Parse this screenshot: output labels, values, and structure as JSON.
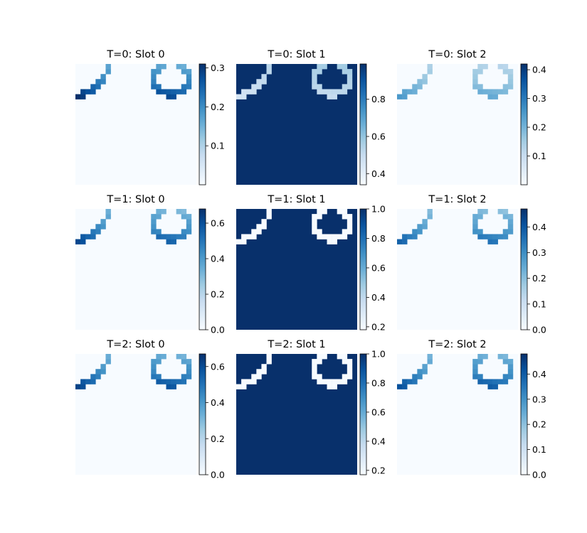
{
  "chart_data": {
    "type": "heatmap",
    "layout": "3x3 grid of attention-mask heatmaps with colorbars",
    "colormap": "Blues",
    "grid": false,
    "axes_visible": false,
    "panels": [
      {
        "title": "T=0: Slot 0",
        "colorbar_ticks": [
          "0.1",
          "0.2",
          "0.3"
        ],
        "colorbar_tick_values": [
          0.1,
          0.2,
          0.3
        ],
        "vmin": 0.0,
        "vmax": 0.31,
        "background": 0.0,
        "circle_values": [
          0.31,
          0.28
        ],
        "arc_fade": true,
        "ring_color": "dark"
      },
      {
        "title": "T=0: Slot 1",
        "colorbar_ticks": [
          "0.4",
          "0.6",
          "0.8"
        ],
        "colorbar_tick_values": [
          0.4,
          0.6,
          0.8
        ],
        "vmin": 0.34,
        "vmax": 0.99,
        "background": 0.99,
        "circle_values": [
          0.45,
          0.5
        ],
        "arc_fade": true,
        "ring_color": "light"
      },
      {
        "title": "T=0: Slot 2",
        "colorbar_ticks": [
          "0.1",
          "0.2",
          "0.3",
          "0.4"
        ],
        "colorbar_tick_values": [
          0.1,
          0.2,
          0.3,
          0.4
        ],
        "vmin": 0.0,
        "vmax": 0.42,
        "background": 0.0,
        "circle_values": [
          0.25,
          0.22
        ],
        "arc_fade": true,
        "ring_color": "mid"
      },
      {
        "title": "T=1: Slot 0",
        "colorbar_ticks": [
          "0.0",
          "0.2",
          "0.4",
          "0.6"
        ],
        "colorbar_tick_values": [
          0.0,
          0.2,
          0.4,
          0.6
        ],
        "vmin": 0.0,
        "vmax": 0.68,
        "background": 0.0,
        "circle_values": [
          0.62,
          0.55
        ],
        "arc_fade": true,
        "ring_color": "dark"
      },
      {
        "title": "T=1: Slot 1",
        "colorbar_ticks": [
          "0.2",
          "0.4",
          "0.6",
          "0.8",
          "1.0"
        ],
        "colorbar_tick_values": [
          0.2,
          0.4,
          0.6,
          0.8,
          1.0
        ],
        "vmin": 0.18,
        "vmax": 1.0,
        "background": 1.0,
        "circle_values": [
          0.18,
          0.18
        ],
        "arc_fade": false,
        "ring_color": "light"
      },
      {
        "title": "T=1: Slot 2",
        "colorbar_ticks": [
          "0.0",
          "0.1",
          "0.2",
          "0.3",
          "0.4"
        ],
        "colorbar_tick_values": [
          0.0,
          0.1,
          0.2,
          0.3,
          0.4
        ],
        "vmin": 0.0,
        "vmax": 0.47,
        "background": 0.0,
        "circle_values": [
          0.38,
          0.35
        ],
        "arc_fade": true,
        "ring_color": "mid"
      },
      {
        "title": "T=2: Slot 0",
        "colorbar_ticks": [
          "0.0",
          "0.2",
          "0.4",
          "0.6"
        ],
        "colorbar_tick_values": [
          0.0,
          0.2,
          0.4,
          0.6
        ],
        "vmin": 0.0,
        "vmax": 0.67,
        "background": 0.0,
        "circle_values": [
          0.62,
          0.58
        ],
        "arc_fade": true,
        "ring_color": "dark"
      },
      {
        "title": "T=2: Slot 1",
        "colorbar_ticks": [
          "0.2",
          "0.4",
          "0.6",
          "0.8",
          "1.0"
        ],
        "colorbar_tick_values": [
          0.2,
          0.4,
          0.6,
          0.8,
          1.0
        ],
        "vmin": 0.17,
        "vmax": 1.0,
        "background": 1.0,
        "circle_values": [
          0.17,
          0.17
        ],
        "arc_fade": false,
        "ring_color": "light"
      },
      {
        "title": "T=2: Slot 2",
        "colorbar_ticks": [
          "0.0",
          "0.1",
          "0.2",
          "0.3",
          "0.4"
        ],
        "colorbar_tick_values": [
          0.0,
          0.1,
          0.2,
          0.3,
          0.4
        ],
        "vmin": 0.0,
        "vmax": 0.48,
        "background": 0.0,
        "circle_values": [
          0.42,
          0.4
        ],
        "arc_fade": true,
        "ring_color": "mid"
      }
    ]
  }
}
